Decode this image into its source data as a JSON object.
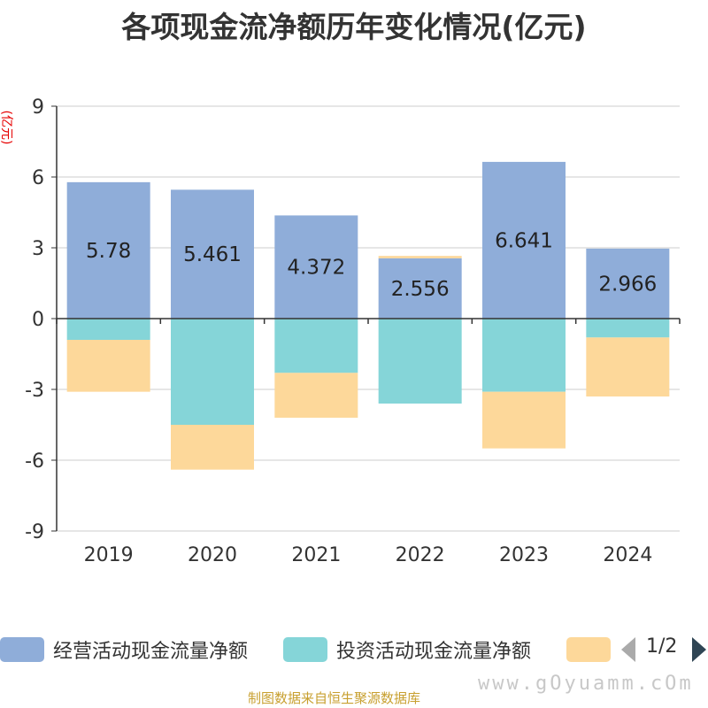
{
  "chart_data": {
    "type": "bar",
    "title": "各项现金流净额历年变化情况(亿元)",
    "y_unit": "(亿元)",
    "categories": [
      "2019",
      "2020",
      "2021",
      "2022",
      "2023",
      "2024"
    ],
    "ylim": [
      -9,
      9
    ],
    "yticks": [
      9,
      6,
      3,
      0,
      -3,
      -6,
      -9
    ],
    "stacked": true,
    "grid": true,
    "legend_position": "bottom",
    "series": [
      {
        "name": "经营活动现金流量净额",
        "color": "#8fadd9",
        "values": [
          5.78,
          5.461,
          4.372,
          2.556,
          6.641,
          2.966
        ],
        "labels": [
          "5.78",
          "5.461",
          "4.372",
          "2.556",
          "6.641",
          "2.966"
        ]
      },
      {
        "name": "投资活动现金流量净额",
        "color": "#85d5d8",
        "values": [
          -0.9,
          -4.5,
          -2.3,
          -3.6,
          -3.1,
          -0.8
        ]
      },
      {
        "name": "",
        "color": "#fdd89a",
        "values": [
          -2.2,
          -1.9,
          -1.9,
          0.1,
          -2.4,
          -2.5
        ]
      }
    ]
  },
  "legend": {
    "items": [
      {
        "label": "经营活动现金流量净额",
        "color": "#8fadd9"
      },
      {
        "label": "投资活动现金流量净额",
        "color": "#85d5d8"
      },
      {
        "label": "",
        "color": "#fdd89a"
      }
    ],
    "pager": "1/2"
  },
  "footer": {
    "source": "制图数据来自恒生聚源数据库",
    "watermark": "www.gOyuamm.cOm"
  }
}
